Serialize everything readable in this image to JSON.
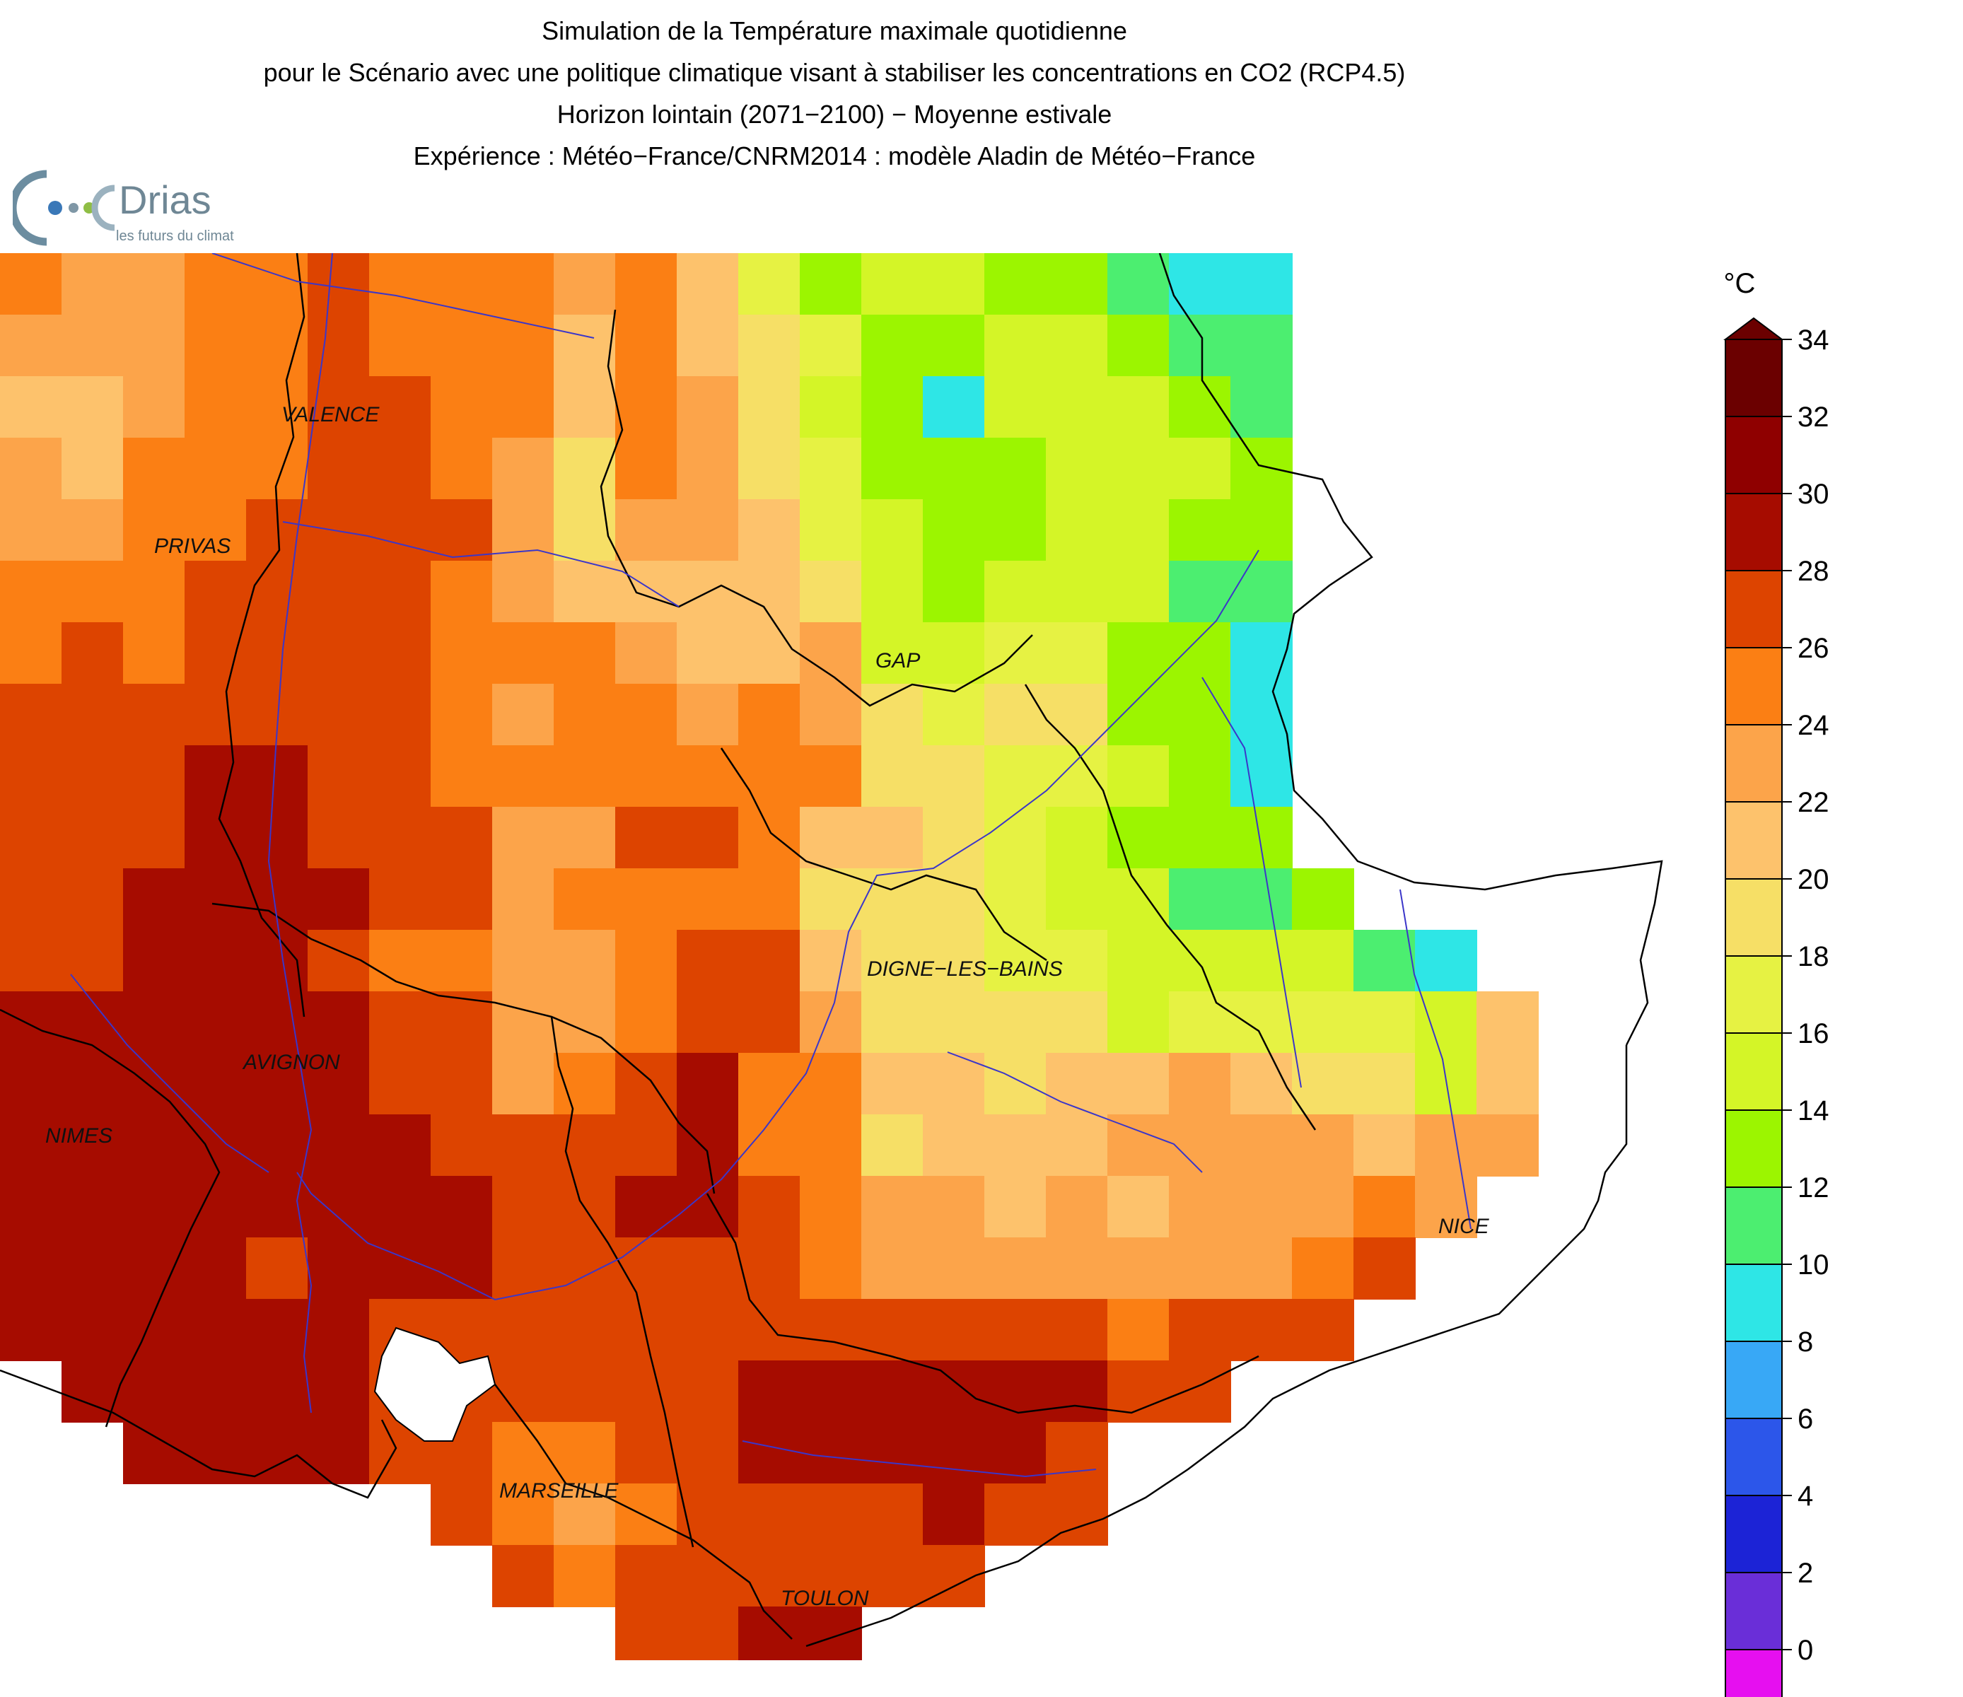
{
  "title": {
    "line1": "Simulation de la Température maximale quotidienne",
    "line2": "pour le Scénario avec une politique climatique visant à stabiliser les concentrations en CO2 (RCP4.5)",
    "line3": "Horizon lointain (2071−2100) − Moyenne estivale",
    "line4": "Expérience : Météo−France/CNRM2014 : modèle Aladin de Météo−France"
  },
  "logo": {
    "name": "Drias",
    "tagline": "les futurs du climat"
  },
  "legend": {
    "unit": "°C",
    "ticks": [
      "34",
      "32",
      "30",
      "28",
      "26",
      "24",
      "22",
      "20",
      "18",
      "16",
      "14",
      "12",
      "10",
      "8",
      "6",
      "4",
      "2",
      "0"
    ],
    "colors": [
      "#6b0000",
      "#8f0000",
      "#a60c00",
      "#dd4400",
      "#fb7f14",
      "#fca44a",
      "#fdc26c",
      "#f6df66",
      "#e6f243",
      "#d4f527",
      "#9cf500",
      "#4cee70",
      "#2ee6e6",
      "#38a8f6",
      "#2c56ea",
      "#1c23d6",
      "#6a2ed8",
      "#e60ff0"
    ]
  },
  "cities": [
    {
      "name": "VALENCE"
    },
    {
      "name": "PRIVAS"
    },
    {
      "name": "GAP"
    },
    {
      "name": "DIGNE−LES−BAINS"
    },
    {
      "name": "AVIGNON"
    },
    {
      "name": "NIMES"
    },
    {
      "name": "NICE"
    },
    {
      "name": "MARSEILLE"
    },
    {
      "name": "TOULON"
    }
  ],
  "map_grid": {
    "cols": 27,
    "rows": 23,
    "cell_values": [
      [
        27,
        25,
        25,
        27,
        27,
        29,
        27,
        27,
        27,
        25,
        27,
        23,
        19,
        15,
        17,
        17,
        15,
        15,
        13,
        11,
        11,
        null,
        null,
        null,
        null,
        null,
        null
      ],
      [
        25,
        25,
        25,
        27,
        27,
        29,
        27,
        27,
        27,
        23,
        27,
        23,
        21,
        19,
        15,
        15,
        17,
        17,
        15,
        13,
        13,
        null,
        null,
        null,
        null,
        null,
        null
      ],
      [
        23,
        23,
        25,
        27,
        27,
        29,
        29,
        27,
        27,
        23,
        27,
        25,
        21,
        17,
        15,
        11,
        17,
        17,
        17,
        15,
        13,
        null,
        null,
        null,
        null,
        null,
        null
      ],
      [
        25,
        23,
        27,
        27,
        27,
        29,
        29,
        27,
        25,
        21,
        27,
        25,
        21,
        19,
        15,
        15,
        15,
        17,
        17,
        17,
        15,
        null,
        null,
        null,
        null,
        null,
        null
      ],
      [
        25,
        25,
        27,
        27,
        29,
        29,
        29,
        29,
        25,
        21,
        25,
        25,
        23,
        19,
        17,
        15,
        15,
        17,
        17,
        15,
        15,
        null,
        null,
        null,
        null,
        null,
        null
      ],
      [
        27,
        27,
        27,
        29,
        29,
        29,
        29,
        27,
        25,
        23,
        23,
        23,
        23,
        21,
        17,
        15,
        17,
        17,
        17,
        13,
        13,
        null,
        null,
        null,
        null,
        null,
        null
      ],
      [
        27,
        29,
        27,
        29,
        29,
        29,
        29,
        27,
        27,
        27,
        25,
        23,
        23,
        25,
        17,
        17,
        19,
        19,
        15,
        15,
        11,
        null,
        null,
        null,
        null,
        null,
        null
      ],
      [
        29,
        29,
        29,
        29,
        29,
        29,
        29,
        27,
        25,
        27,
        27,
        25,
        27,
        25,
        21,
        19,
        21,
        21,
        15,
        15,
        11,
        null,
        null,
        null,
        null,
        null,
        null
      ],
      [
        29,
        29,
        29,
        31,
        31,
        29,
        29,
        27,
        27,
        27,
        27,
        27,
        27,
        27,
        21,
        21,
        19,
        19,
        17,
        15,
        11,
        null,
        null,
        null,
        null,
        null,
        null
      ],
      [
        29,
        29,
        29,
        31,
        31,
        29,
        29,
        29,
        25,
        25,
        29,
        29,
        27,
        23,
        23,
        21,
        19,
        17,
        15,
        15,
        15,
        null,
        null,
        null,
        null,
        null,
        null
      ],
      [
        29,
        29,
        31,
        31,
        31,
        31,
        29,
        29,
        25,
        27,
        27,
        27,
        27,
        21,
        21,
        21,
        19,
        17,
        17,
        13,
        13,
        15,
        null,
        null,
        null,
        null,
        null
      ],
      [
        29,
        29,
        31,
        31,
        31,
        29,
        27,
        27,
        25,
        25,
        27,
        29,
        29,
        23,
        21,
        21,
        19,
        19,
        17,
        17,
        17,
        17,
        13,
        11,
        null,
        null,
        null
      ],
      [
        31,
        31,
        31,
        31,
        31,
        31,
        29,
        29,
        25,
        25,
        27,
        29,
        29,
        25,
        21,
        21,
        21,
        21,
        17,
        19,
        19,
        19,
        19,
        17,
        23,
        null,
        null
      ],
      [
        31,
        31,
        31,
        31,
        31,
        31,
        29,
        29,
        25,
        27,
        29,
        31,
        27,
        27,
        23,
        23,
        21,
        23,
        23,
        25,
        23,
        21,
        21,
        17,
        23,
        null,
        null
      ],
      [
        31,
        31,
        31,
        31,
        31,
        31,
        31,
        29,
        29,
        29,
        29,
        31,
        27,
        27,
        21,
        23,
        23,
        23,
        25,
        25,
        25,
        25,
        23,
        25,
        25,
        null,
        null
      ],
      [
        31,
        31,
        31,
        31,
        31,
        31,
        31,
        31,
        29,
        29,
        31,
        31,
        29,
        27,
        25,
        25,
        23,
        25,
        23,
        25,
        25,
        25,
        27,
        25,
        null,
        null,
        null
      ],
      [
        31,
        31,
        31,
        31,
        29,
        31,
        31,
        31,
        29,
        29,
        29,
        29,
        29,
        27,
        25,
        25,
        25,
        25,
        25,
        25,
        25,
        27,
        29,
        null,
        null,
        null,
        null
      ],
      [
        31,
        31,
        31,
        31,
        31,
        31,
        29,
        29,
        29,
        29,
        29,
        29,
        29,
        29,
        29,
        29,
        29,
        29,
        27,
        29,
        29,
        29,
        null,
        null,
        null,
        null,
        null
      ],
      [
        null,
        31,
        31,
        31,
        31,
        31,
        29,
        29,
        29,
        29,
        29,
        29,
        31,
        31,
        31,
        31,
        31,
        31,
        29,
        29,
        null,
        null,
        null,
        null,
        null,
        null,
        null
      ],
      [
        null,
        null,
        31,
        31,
        31,
        31,
        29,
        29,
        27,
        27,
        29,
        29,
        31,
        31,
        31,
        31,
        31,
        29,
        null,
        null,
        null,
        null,
        null,
        null,
        null,
        null,
        null
      ],
      [
        null,
        null,
        null,
        null,
        null,
        null,
        null,
        29,
        27,
        25,
        27,
        29,
        29,
        29,
        29,
        31,
        29,
        29,
        null,
        null,
        null,
        null,
        null,
        null,
        null,
        null,
        null
      ],
      [
        null,
        null,
        null,
        null,
        null,
        null,
        null,
        null,
        29,
        27,
        29,
        29,
        29,
        29,
        29,
        29,
        null,
        null,
        null,
        null,
        null,
        null,
        null,
        null,
        null,
        null,
        null
      ],
      [
        null,
        null,
        null,
        null,
        null,
        null,
        null,
        null,
        null,
        null,
        29,
        29,
        31,
        31,
        null,
        null,
        null,
        null,
        null,
        null,
        null,
        null,
        null,
        null,
        null,
        null,
        null
      ]
    ]
  }
}
